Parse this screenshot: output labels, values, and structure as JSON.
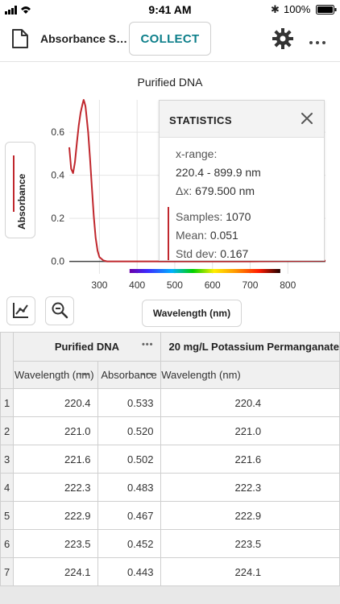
{
  "status_bar": {
    "time": "9:41 AM",
    "battery": "100%"
  },
  "toolbar": {
    "file_name": "Absorbance Spectrum",
    "collect_label": "COLLECT"
  },
  "graph": {
    "title": "Purified DNA",
    "y_axis_label": "Absorbance",
    "x_axis_label": "Wavelength (nm)",
    "series_color": "#c0272d"
  },
  "chart_data": {
    "type": "line",
    "title": "Purified DNA",
    "xlabel": "Wavelength (nm)",
    "ylabel": "Absorbance",
    "xlim": [
      220,
      900
    ],
    "ylim": [
      -0.02,
      0.75
    ],
    "x_ticks": [
      "300",
      "400",
      "500",
      "600",
      "700",
      "800"
    ],
    "y_ticks": [
      "0.0",
      "0.2",
      "0.4",
      "0.6"
    ],
    "grid": true,
    "series": [
      {
        "color": "#c0272d",
        "x": [
          220,
          225,
          230,
          235,
          240,
          245,
          250,
          255,
          258,
          260,
          263,
          266,
          270,
          275,
          280,
          285,
          290,
          295,
          300,
          310,
          320,
          340,
          400,
          500,
          600,
          700,
          800,
          900
        ],
        "y": [
          0.53,
          0.43,
          0.41,
          0.46,
          0.55,
          0.63,
          0.69,
          0.73,
          0.75,
          0.74,
          0.72,
          0.67,
          0.6,
          0.48,
          0.34,
          0.21,
          0.11,
          0.05,
          0.02,
          0.005,
          0.0,
          0.0,
          0.0,
          0.0,
          0.0,
          0.0,
          0.002,
          0.003
        ]
      }
    ]
  },
  "stats": {
    "title": "STATISTICS",
    "x_range_label": "x-range:",
    "x_range_value": "220.4 - 899.9 nm",
    "dx_label": "Δx:",
    "dx_value": "679.500 nm",
    "samples_label": "Samples:",
    "samples_value": "1070",
    "mean_label": "Mean:",
    "mean_value": "0.051",
    "std_label": "Std dev:",
    "std_value": "0.167"
  },
  "table": {
    "group1": "Purified DNA",
    "group2": "20 mg/L Potassium Permanganate",
    "col_wavelength": "Wavelength (nm)",
    "col_absorbance": "Absorbance",
    "rows": [
      {
        "idx": "1",
        "wl": "220.4",
        "abs": "0.533",
        "wl2": "220.4"
      },
      {
        "idx": "2",
        "wl": "221.0",
        "abs": "0.520",
        "wl2": "221.0"
      },
      {
        "idx": "3",
        "wl": "221.6",
        "abs": "0.502",
        "wl2": "221.6"
      },
      {
        "idx": "4",
        "wl": "222.3",
        "abs": "0.483",
        "wl2": "222.3"
      },
      {
        "idx": "5",
        "wl": "222.9",
        "abs": "0.467",
        "wl2": "222.9"
      },
      {
        "idx": "6",
        "wl": "223.5",
        "abs": "0.452",
        "wl2": "223.5"
      },
      {
        "idx": "7",
        "wl": "224.1",
        "abs": "0.443",
        "wl2": "224.1"
      }
    ]
  }
}
